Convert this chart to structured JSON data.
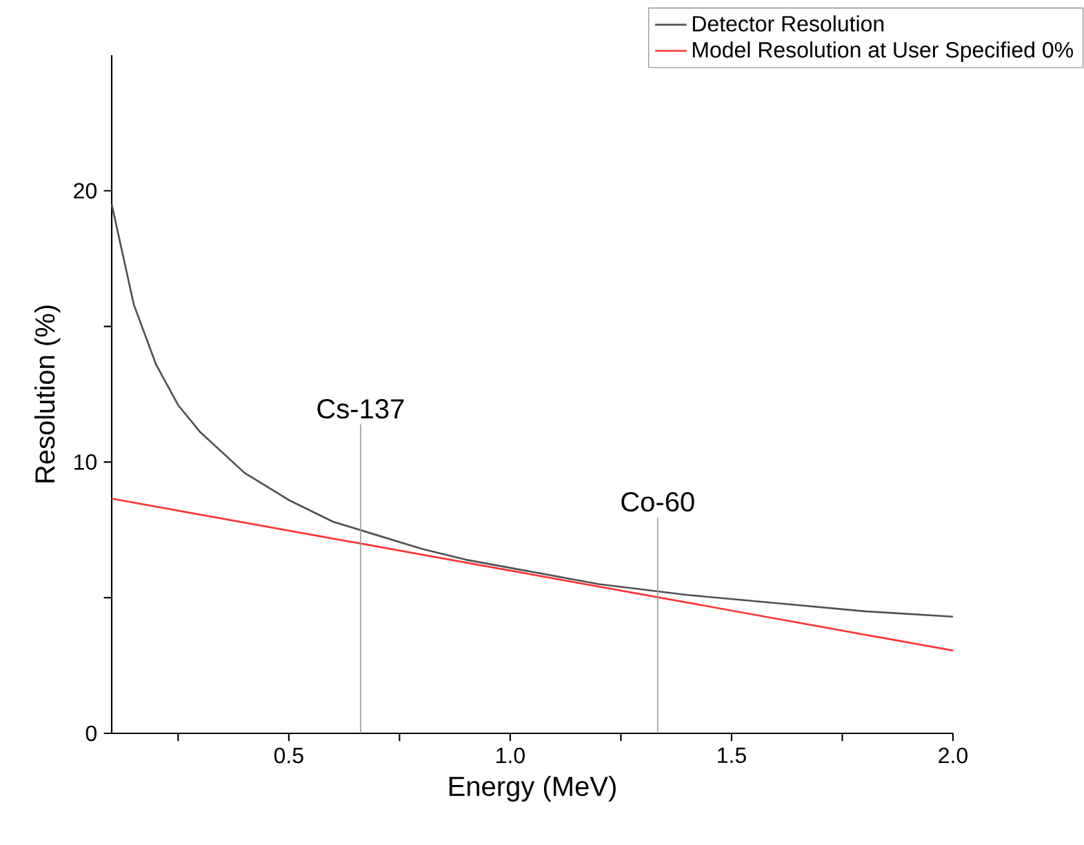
{
  "chart_data": {
    "type": "line",
    "xlabel": "Energy (MeV)",
    "ylabel": "Resolution (%)",
    "x": [
      0.1,
      0.15,
      0.2,
      0.25,
      0.3,
      0.4,
      0.5,
      0.6,
      0.7,
      0.8,
      0.9,
      1.0,
      1.2,
      1.4,
      1.6,
      1.8,
      2.0
    ],
    "series": [
      {
        "name": "Detector Resolution",
        "color": "#505050",
        "values": [
          19.5,
          15.8,
          13.6,
          12.1,
          11.1,
          9.6,
          8.6,
          7.8,
          7.3,
          6.8,
          6.4,
          6.1,
          5.5,
          5.1,
          4.8,
          4.5,
          4.3
        ]
      },
      {
        "name": "Model Resolution at User Specified 0%",
        "color": "#ff3333",
        "x": [
          0.1,
          1.0,
          2.0
        ],
        "values": [
          8.65,
          6.0,
          3.05
        ]
      }
    ],
    "xlim": [
      0.1,
      2.0
    ],
    "xticks": [
      {
        "value": 0.25,
        "label": null
      },
      0.5,
      {
        "value": 0.75,
        "label": null
      },
      {
        "value": 1.0,
        "label": "1.0"
      },
      {
        "value": 1.25,
        "label": null
      },
      1.5,
      {
        "value": 1.75,
        "label": null
      },
      {
        "value": 2.0,
        "label": "2.0"
      }
    ],
    "ylim": [
      0,
      25
    ],
    "yticks": [
      0,
      {
        "value": 5,
        "label": null
      },
      10,
      {
        "value": 15,
        "label": null
      },
      20
    ],
    "ref_lines": [
      {
        "axis": "x",
        "value": 0.662,
        "label": "Cs-137",
        "color": "#999999"
      },
      {
        "axis": "x",
        "value": 1.333,
        "label": "Co-60",
        "color": "#999999"
      }
    ],
    "legend": "top right"
  }
}
